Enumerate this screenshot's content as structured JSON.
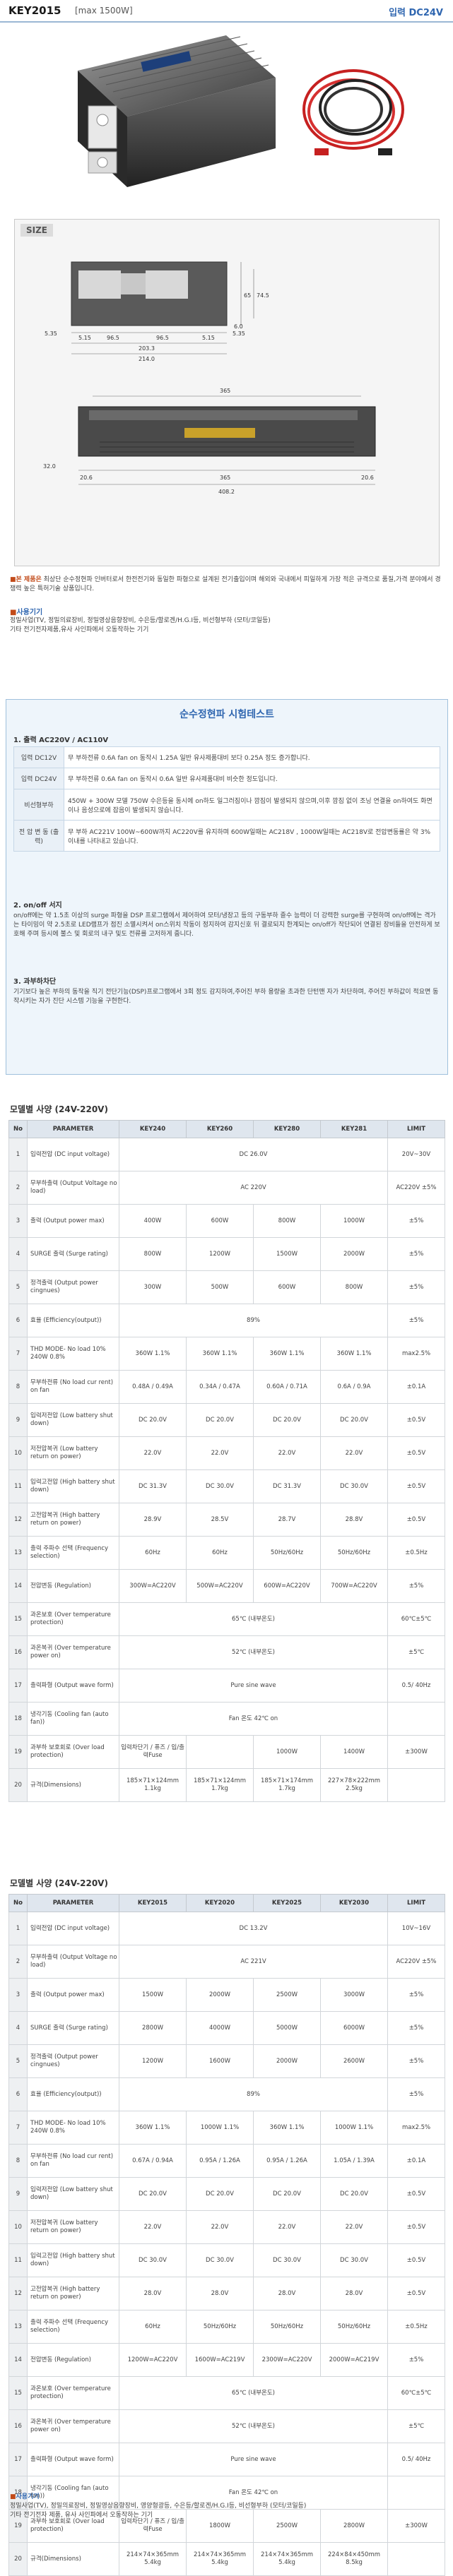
{
  "header": {
    "model": "KEY2015",
    "power": "[max 1500W]",
    "input": "입력 DC24V"
  },
  "size": {
    "label": "SIZE",
    "front": {
      "d1": "5.35",
      "d2": "5.15",
      "d3": "96.5",
      "d4": "96.5",
      "d5": "5.15",
      "d6": "5.35",
      "d7": "6.0",
      "d8": "203.3",
      "d9": "214.0",
      "h1": "74.5",
      "h2": "65"
    },
    "side": {
      "len": "365",
      "d1": "32.0",
      "d2": "20.6",
      "d3": "365",
      "d4": "20.6",
      "total": "408.2"
    }
  },
  "notes": {
    "note1_head": "본 제품은",
    "note1_body": " 최상단 순수정현파 인버터로서 한전전기와 동일한 파형으로 설계된 전기출입이며 해외와 국내에서 피일하게 가장 적은 규격으로 품질,가격 분야에서 경쟁력 높은 특허기술 상품입니다.",
    "usage_title": "사용기기",
    "usage_body": "정밀사업(TV, 정밀의료장비, 정밀영상음향장비, 수은등/할로겐/H.G.I등, 비선형부하 (모터/코일등)",
    "usage_body2": "기타 전기전자제품,유사 사인파에서 오동작하는 기기"
  },
  "test": {
    "title": "순수정현파 시험테스트",
    "s1": "1. 출력 AC220V / AC110V",
    "rows": [
      {
        "k": "입력 DC12V",
        "v": "무 부하전류 0.6A fan on 동작시 1.25A 일반 유사제품대비 보다 0.25A 정도 증가합니다."
      },
      {
        "k": "입력 DC24V",
        "v": "무 부하전류 0.6A fan on 동작시 0.6A 일반 유사제품대비 비슷한 정도입니다."
      },
      {
        "k": "비선형부하",
        "v": "450W + 300W 모델 750W 수은등을 동시에 on하도 일그러짐이나 깜짐이 발생되지 않으며,이후 깜짐 없이 조닝 연결을 on하여도 화면이나 음성으로에 잡음이 발생되지 않습니다."
      },
      {
        "k": "전 압 변 동 (출력)",
        "v": "무 부하 AC221V 100W~600W까지 AC220V를 유지하며 600W일때는 AC218V , 1000W일때는 AC218V로 전압변동률은 약 3% 이내를 나타내고 있습니다."
      }
    ],
    "s2": "2. on/off 서지",
    "s2_body": "on/off에는 약 1.5초 이상의 surge 파형을 DSP 프로그램에서 제어하여 모터/냉장고 등의 구동부하 즐수 능력이 더 강력한 surge를 구현하며 on/off에는 격가는 타이밍이 약 2.5초로 LED램프가 점진 소멸시켜서 on스위치 작동이 정지하여 감지신호 뒤 결로되지 한계되는 on/off가 작단되어 연결된 장비들을 안전하게 보호해 주며 등시에 불스 및 회로의 내구 및도 전류를 고저하게 줍니다.",
    "s3": "3. 과부하차단",
    "s3_body": "기기보다 높은 부하의 동작을 직기 전단기능(DSP)프로그램에서 3회 정도 감지하여,주어진 부하 용량을 초과한 단턴맨 자가 차단하며, 주어진 부하값이 적요면 동작시키는 자가 진단 시스템 기능을 구현한다."
  },
  "spec1": {
    "title": "모델별 사양 (24V-220V)",
    "headers": [
      "No",
      "PARAMETER",
      "KEY240",
      "KEY260",
      "KEY280",
      "KEY281",
      "LIMIT"
    ],
    "rows": [
      [
        "1",
        "입력전압 (DC input voltage)",
        "DC 26.0V",
        "",
        "",
        "",
        "20V~30V"
      ],
      [
        "2",
        "무부하출력 (Output Voltage no load)",
        "AC 220V",
        "",
        "",
        "",
        "AC220V ±5%"
      ],
      [
        "3",
        "출력 (Output power max)",
        "400W",
        "600W",
        "800W",
        "1000W",
        "±5%"
      ],
      [
        "4",
        "SURGE 출력 (Surge rating)",
        "800W",
        "1200W",
        "1500W",
        "2000W",
        "±5%"
      ],
      [
        "5",
        "정격출력 (Output power cingnues)",
        "300W",
        "500W",
        "600W",
        "800W",
        "±5%"
      ],
      [
        "6",
        "효율 (Efficiency(output))",
        "89%",
        "",
        "",
        "",
        "±5%"
      ],
      [
        "7",
        "THD MODE- No load 10% 240W 0.8%",
        "360W 1.1%",
        "360W 1.1%",
        "360W 1.1%",
        "360W 1.1%",
        "max2.5%"
      ],
      [
        "8",
        "무부하전류 (No load cur rent) on fan",
        "0.48A / 0.49A",
        "0.34A / 0.47A",
        "0.60A / 0.71A",
        "0.6A / 0.9A",
        "±0.1A"
      ],
      [
        "9",
        "입력저전압 (Low battery shut down)",
        "DC 20.0V",
        "DC 20.0V",
        "DC 20.0V",
        "DC 20.0V",
        "±0.5V"
      ],
      [
        "10",
        "저전압복귀 (Low battery return on power)",
        "22.0V",
        "22.0V",
        "22.0V",
        "22.0V",
        "±0.5V"
      ],
      [
        "11",
        "입력고전압 (High battery shut down)",
        "DC 31.3V",
        "DC 30.0V",
        "DC 31.3V",
        "DC 30.0V",
        "±0.5V"
      ],
      [
        "12",
        "고전압복귀 (High battery return on power)",
        "28.9V",
        "28.5V",
        "28.7V",
        "28.8V",
        "±0.5V"
      ],
      [
        "13",
        "출력 주파수 선택 (Frequency selection)",
        "60Hz",
        "60Hz",
        "50Hz/60Hz",
        "50Hz/60Hz",
        "±0.5Hz"
      ],
      [
        "14",
        "전압변동 (Regulation)",
        "300W=AC220V",
        "500W=AC220V",
        "600W=AC220V",
        "700W=AC220V",
        "±5%"
      ],
      [
        "15",
        "과온보호 (Over temperature protection)",
        "65℃ (내부온도)",
        "",
        "",
        "",
        "60℃±5℃"
      ],
      [
        "16",
        "과온복귀 (Over temperature power on)",
        "52℃ (내부온도)",
        "",
        "",
        "",
        "±5℃"
      ],
      [
        "17",
        "출력파형 (Output wave form)",
        "Pure sine wave",
        "",
        "",
        "",
        "0.5/ 40Hz"
      ],
      [
        "18",
        "냉각기동 (Cooling fan (auto fan))",
        "Fan 온도 42℃ on",
        "",
        "",
        "",
        ""
      ],
      [
        "19",
        "과부하 보호회로 (Over load protection)",
        "입력차단기 / 퓨즈 / 입/출력Fuse",
        "",
        "1000W",
        "1400W",
        "±300W"
      ],
      [
        "20",
        "규격(Dimensions)",
        "185×71×124mm 1.1kg",
        "185×71×124mm 1.7kg",
        "185×71×174mm 1.7kg",
        "227×78×222mm 2.5kg",
        ""
      ]
    ]
  },
  "spec2": {
    "title": "모델별 사양 (24V-220V)",
    "headers": [
      "No",
      "PARAMETER",
      "KEY2015",
      "KEY2020",
      "KEY2025",
      "KEY2030",
      "LIMIT"
    ],
    "rows": [
      [
        "1",
        "입력전압 (DC input voltage)",
        "DC 13.2V",
        "",
        "",
        "",
        "10V~16V"
      ],
      [
        "2",
        "무부하출력 (Output Voltage no load)",
        "AC 221V",
        "",
        "",
        "",
        "AC220V ±5%"
      ],
      [
        "3",
        "출력 (Output power max)",
        "1500W",
        "2000W",
        "2500W",
        "3000W",
        "±5%"
      ],
      [
        "4",
        "SURGE 출력 (Surge rating)",
        "2800W",
        "4000W",
        "5000W",
        "6000W",
        "±5%"
      ],
      [
        "5",
        "정격출력 (Output power cingnues)",
        "1200W",
        "1600W",
        "2000W",
        "2600W",
        "±5%"
      ],
      [
        "6",
        "효율 (Efficiency(output))",
        "89%",
        "",
        "",
        "",
        "±5%"
      ],
      [
        "7",
        "THD MODE- No load 10% 240W 0.8%",
        "360W 1.1%",
        "1000W 1.1%",
        "360W 1.1%",
        "1000W 1.1%",
        "max2.5%"
      ],
      [
        "8",
        "무부하전류 (No load cur rent) on fan",
        "0.67A / 0.94A",
        "0.95A / 1.26A",
        "0.95A / 1.26A",
        "1.05A / 1.39A",
        "±0.1A"
      ],
      [
        "9",
        "입력저전압 (Low battery shut down)",
        "DC 20.0V",
        "DC 20.0V",
        "DC 20.0V",
        "DC 20.0V",
        "±0.5V"
      ],
      [
        "10",
        "저전압복귀 (Low battery return on power)",
        "22.0V",
        "22.0V",
        "22.0V",
        "22.0V",
        "±0.5V"
      ],
      [
        "11",
        "입력고전압 (High battery shut down)",
        "DC 30.0V",
        "DC 30.0V",
        "DC 30.0V",
        "DC 30.0V",
        "±0.5V"
      ],
      [
        "12",
        "고전압복귀 (High battery return on power)",
        "28.0V",
        "28.0V",
        "28.0V",
        "28.0V",
        "±0.5V"
      ],
      [
        "13",
        "출력 주파수 선택 (Frequency selection)",
        "60Hz",
        "50Hz/60Hz",
        "50Hz/60Hz",
        "50Hz/60Hz",
        "±0.5Hz"
      ],
      [
        "14",
        "전압변동 (Regulation)",
        "1200W=AC220V",
        "1600W=AC219V",
        "2300W=AC220V",
        "2000W=AC219V",
        "±5%"
      ],
      [
        "15",
        "과온보호 (Over temperature protection)",
        "65℃ (내부온도)",
        "",
        "",
        "",
        "60℃±5℃"
      ],
      [
        "16",
        "과온복귀 (Over temperature power on)",
        "52℃ (내부온도)",
        "",
        "",
        "",
        "±5℃"
      ],
      [
        "17",
        "출력파형 (Output wave form)",
        "Pure sine wave",
        "",
        "",
        "",
        "0.5/ 40Hz"
      ],
      [
        "18",
        "냉각기동 (Cooling fan (auto fan))",
        "Fan 온도 42℃ on",
        "",
        "",
        "",
        ""
      ],
      [
        "19",
        "과부하 보호회로 (Over load protection)",
        "입력차단기 / 퓨즈 / 입/출력Fuse",
        "1800W",
        "2500W",
        "2800W",
        "±300W"
      ],
      [
        "20",
        "규격(Dimensions)",
        "214×74×365mm 5.4kg",
        "214×74×365mm 5.4kg",
        "214×74×365mm 5.4kg",
        "224×84×450mm 8.5kg",
        ""
      ]
    ]
  },
  "footer": {
    "title": "사용기기",
    "line1": "정밀사업(TV), 정밀의료장비, 정밀영상음향장비, 영양형광등, 수은등/할로겐/H.G.I등, 비선형부하 (모터/코일등)",
    "line2": "기타 전기전자 제품, 유사 사인파에서 오동작하는 기기"
  },
  "colors": {
    "accent": "#2f66b0",
    "header_rule": "#9bb7d4",
    "panel_bg": "#eef5fb"
  }
}
